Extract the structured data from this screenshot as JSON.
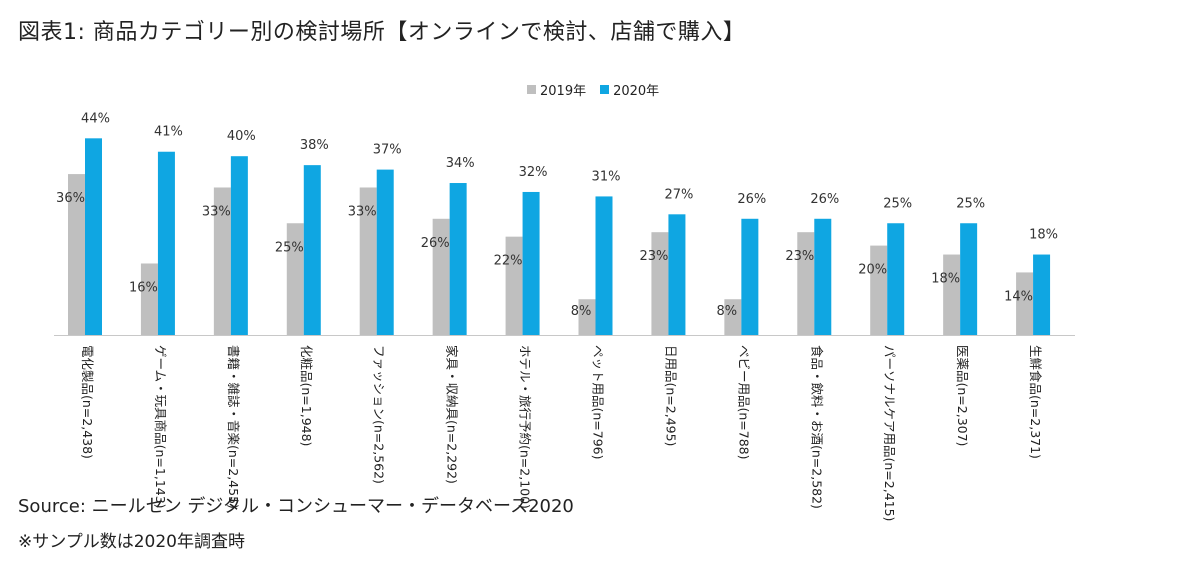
{
  "title": "図表1: 商品カテゴリー別の検討場所【オンラインで検討、店舗で購入】",
  "colors": {
    "series_2019": "#bfbfbf",
    "series_2020": "#0fa6e2",
    "axis": "#c8c8c8"
  },
  "chart_data": {
    "type": "bar",
    "title": "図表1: 商品カテゴリー別の検討場所【オンラインで検討、店舗で購入】",
    "xlabel": "",
    "ylabel": "",
    "ylim": [
      0,
      50
    ],
    "grid": false,
    "legend_position": "top-center",
    "categories": [
      "電化製品(n=2,438)",
      "ゲーム・玩具商品(n=1,143)",
      "書籍・雑誌・音楽(n=2,455)",
      "化粧品(n=1,948)",
      "ファッション(n=2,562)",
      "家具・収納具(n=2,292)",
      "ホテル・旅行予約(n=2,100)",
      "ペット用品(n=796)",
      "日用品(n=2,495)",
      "ベビー用品(n=788)",
      "食品・飲料・お酒(n=2,582)",
      "パーソナルケア用品(n=2,415)",
      "医薬品(n=2,307)",
      "生鮮食品(n=2,371)"
    ],
    "series": [
      {
        "name": "2019年",
        "values": [
          36,
          16,
          33,
          25,
          33,
          26,
          22,
          8,
          23,
          8,
          23,
          20,
          18,
          14
        ]
      },
      {
        "name": "2020年",
        "values": [
          44,
          41,
          40,
          38,
          37,
          34,
          32,
          31,
          27,
          26,
          26,
          25,
          25,
          18
        ]
      }
    ]
  },
  "source": "Source: ニールセン デジタル・コンシューマー・データベース2020",
  "note": "※サンプル数は2020年調査時"
}
